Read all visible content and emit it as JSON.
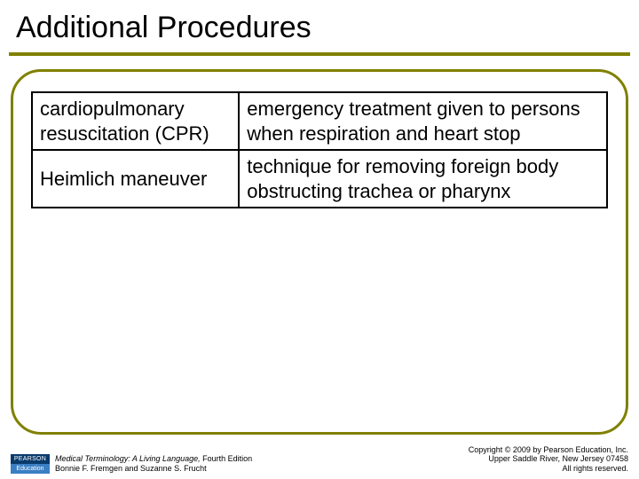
{
  "title": "Additional Procedures",
  "colors": {
    "accent": "#808000",
    "border": "#000000",
    "text": "#000000",
    "logo_top_bg": "#0a3a6b",
    "logo_bottom_bg": "#3a7fc4"
  },
  "typography": {
    "title_fontsize": 34,
    "body_fontsize": 22,
    "footer_fontsize": 9
  },
  "table": {
    "rows": [
      {
        "term": "cardiopulmonary resuscitation (CPR)",
        "definition": "emergency treatment given to persons when respiration and heart stop"
      },
      {
        "term": "Heimlich maneuver",
        "definition": "technique for removing foreign body obstructing trachea or pharynx"
      }
    ]
  },
  "footer": {
    "logo": {
      "top": "PEARSON",
      "bottom": "Education"
    },
    "book_title": "Medical Terminology: A Living Language,",
    "edition": " Fourth Edition",
    "authors": "Bonnie F. Fremgen and Suzanne S. Frucht",
    "copyright_line1": "Copyright © 2009 by Pearson Education, Inc.",
    "copyright_line2": "Upper Saddle River, New Jersey 07458",
    "copyright_line3": "All rights reserved."
  }
}
